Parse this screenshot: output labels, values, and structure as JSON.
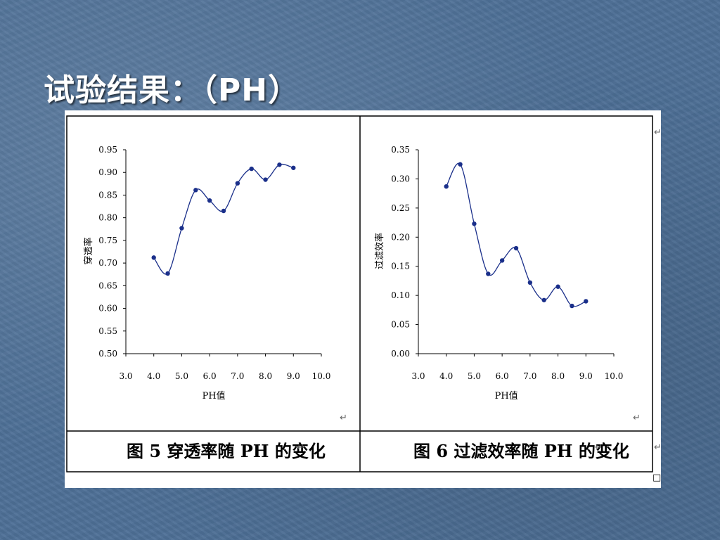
{
  "title": "试验结果：（PH）",
  "figure_captions": [
    "图 5  穿透率随 PH 的变化",
    "图 6  过滤效率随 PH 的变化"
  ],
  "chart_data": [
    {
      "type": "line",
      "xlabel": "PH值",
      "ylabel": "穿透率",
      "xlim": [
        3.0,
        10.0
      ],
      "ylim": [
        0.5,
        0.95
      ],
      "xticks": [
        "3.0",
        "4.0",
        "5.0",
        "6.0",
        "7.0",
        "8.0",
        "9.0",
        "10.0"
      ],
      "yticks": [
        "0.50",
        "0.55",
        "0.60",
        "0.65",
        "0.70",
        "0.75",
        "0.80",
        "0.85",
        "0.90",
        "0.95"
      ],
      "x": [
        4.0,
        4.5,
        5.0,
        5.5,
        6.0,
        6.5,
        7.0,
        7.5,
        8.0,
        8.5,
        9.0
      ],
      "y": [
        0.712,
        0.677,
        0.777,
        0.861,
        0.838,
        0.815,
        0.876,
        0.908,
        0.884,
        0.917,
        0.91
      ],
      "grid": false,
      "color": "#1a2f8a"
    },
    {
      "type": "line",
      "xlabel": "PH值",
      "ylabel": "过滤效率",
      "xlim": [
        3.0,
        10.0
      ],
      "ylim": [
        0.0,
        0.35
      ],
      "xticks": [
        "3.0",
        "4.0",
        "5.0",
        "6.0",
        "7.0",
        "8.0",
        "9.0",
        "10.0"
      ],
      "yticks": [
        "0.00",
        "0.05",
        "0.10",
        "0.15",
        "0.20",
        "0.25",
        "0.30",
        "0.35"
      ],
      "x": [
        4.0,
        4.5,
        5.0,
        5.5,
        6.0,
        6.5,
        7.0,
        7.5,
        8.0,
        8.5,
        9.0
      ],
      "y": [
        0.287,
        0.325,
        0.223,
        0.137,
        0.16,
        0.181,
        0.122,
        0.092,
        0.115,
        0.082,
        0.09
      ],
      "grid": false,
      "color": "#1a2f8a"
    }
  ],
  "marks": {
    "return": "↵",
    "box": "□"
  }
}
